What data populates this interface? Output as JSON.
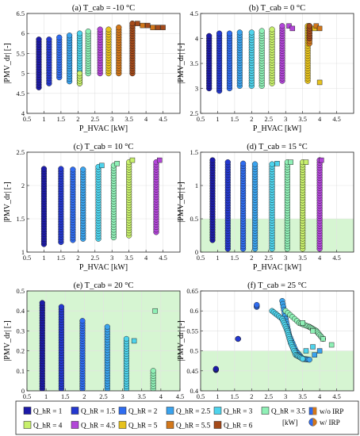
{
  "chart_data": [
    {
      "type": "scatter",
      "panel": "a",
      "title": "(a) T_cab = -10 °C",
      "xlabel": "P_HVAC [kW]",
      "ylabel": "|PMV_dr| [-]",
      "xlim": [
        0.5,
        5
      ],
      "ylim": [
        4,
        6.5
      ],
      "xticks": [
        "0.5",
        "1",
        "1.5",
        "2",
        "2.5",
        "3",
        "3.5",
        "4",
        "4.5"
      ],
      "yticks": [
        "4",
        "4.5",
        "5",
        "5.5",
        "6",
        "6.5"
      ],
      "shaded": null,
      "series": [
        {
          "q": 1,
          "x": 0.85,
          "ymin": 4.65,
          "ymax": 5.85,
          "irp": []
        },
        {
          "q": 1.5,
          "x": 1.15,
          "ymin": 4.75,
          "ymax": 5.85,
          "irp": []
        },
        {
          "q": 2,
          "x": 1.45,
          "ymin": 4.9,
          "ymax": 5.9,
          "irp": []
        },
        {
          "q": 2.5,
          "x": 1.75,
          "ymin": 4.8,
          "ymax": 5.95,
          "irp": []
        },
        {
          "q": 3,
          "x": 2.05,
          "ymin": 4.75,
          "ymax": 6.0,
          "irp": []
        },
        {
          "q": 3.5,
          "x": 2.3,
          "ymin": 5.0,
          "ymax": 6.05,
          "irp": []
        },
        {
          "q": 4,
          "x": 2.05,
          "ymin": 4.75,
          "ymax": 5.0,
          "irp": []
        },
        {
          "q": 4.5,
          "x": 2.65,
          "ymin": 5.0,
          "ymax": 6.1,
          "irp": []
        },
        {
          "q": 5,
          "x": 2.9,
          "ymin": 5.0,
          "ymax": 6.1,
          "irp": []
        },
        {
          "q": 5.5,
          "x": 3.2,
          "ymin": 5.0,
          "ymax": 6.15,
          "irp": [
            [
              3.6,
              6.2
            ],
            [
              3.9,
              6.2
            ],
            [
              4.2,
              6.15
            ]
          ]
        },
        {
          "q": 6,
          "x": 3.6,
          "ymin": 5.0,
          "ymax": 6.25,
          "irp": [
            [
              3.75,
              6.25
            ],
            [
              4.05,
              6.2
            ],
            [
              4.35,
              6.15
            ],
            [
              4.5,
              6.15
            ]
          ]
        }
      ]
    },
    {
      "type": "scatter",
      "panel": "b",
      "title": "(b) T_cab = 0 °C",
      "xlabel": "P_HVAC [kW]",
      "ylabel": "|PMV_dr| [-]",
      "xlim": [
        0.5,
        5
      ],
      "ylim": [
        2.5,
        4.5
      ],
      "xticks": [
        "0.5",
        "1",
        "1.5",
        "2",
        "2.5",
        "3",
        "3.5",
        "4",
        "4.5"
      ],
      "yticks": [
        "2.5",
        "3",
        "3.5",
        "4",
        "4.5"
      ],
      "shaded": null,
      "series": [
        {
          "q": 1,
          "x": 0.75,
          "ymin": 3.0,
          "ymax": 4.05,
          "irp": []
        },
        {
          "q": 1.5,
          "x": 1.05,
          "ymin": 2.95,
          "ymax": 4.1,
          "irp": []
        },
        {
          "q": 2,
          "x": 1.35,
          "ymin": 3.0,
          "ymax": 4.1,
          "irp": []
        },
        {
          "q": 2.5,
          "x": 1.65,
          "ymin": 3.05,
          "ymax": 4.12,
          "irp": []
        },
        {
          "q": 3,
          "x": 2.0,
          "ymin": 3.05,
          "ymax": 4.12,
          "irp": []
        },
        {
          "q": 3.5,
          "x": 2.3,
          "ymin": 3.05,
          "ymax": 4.15,
          "irp": []
        },
        {
          "q": 4,
          "x": 2.6,
          "ymin": 3.1,
          "ymax": 4.18,
          "irp": []
        },
        {
          "q": 4.5,
          "x": 2.9,
          "ymin": 3.15,
          "ymax": 4.25,
          "irp": [
            [
              3.1,
              4.25
            ],
            [
              3.2,
              4.2
            ]
          ]
        },
        {
          "q": 5,
          "x": 3.65,
          "ymin": 3.15,
          "ymax": 4.25,
          "irp": [
            [
              3.85,
              4.2
            ],
            [
              4.0,
              3.12
            ]
          ]
        },
        {
          "q": 5.5,
          "x": 3.7,
          "ymin": 3.9,
          "ymax": 4.25,
          "irp": [
            [
              3.9,
              4.25
            ],
            [
              4.0,
              4.2
            ]
          ]
        },
        {
          "q": 6,
          "x": 3.7,
          "ymin": 4.0,
          "ymax": 4.25,
          "irp": []
        }
      ]
    },
    {
      "type": "scatter",
      "panel": "c",
      "title": "(c) T_cab = 10 °C",
      "xlabel": "P_HVAC [kW]",
      "ylabel": "|PMV_dr| [-]",
      "xlim": [
        0.5,
        5
      ],
      "ylim": [
        1,
        2.5
      ],
      "xticks": [
        "0.5",
        "1",
        "1.5",
        "2",
        "2.5",
        "3",
        "3.5",
        "4",
        "4.5"
      ],
      "yticks": [
        "1",
        "1.5",
        "2",
        "2.5"
      ],
      "shaded": null,
      "series": [
        {
          "q": 1,
          "x": 1.0,
          "ymin": 1.12,
          "ymax": 2.25,
          "irp": []
        },
        {
          "q": 1.5,
          "x": 1.5,
          "ymin": 1.15,
          "ymax": 2.25,
          "irp": []
        },
        {
          "q": 2,
          "x": 1.85,
          "ymin": 1.18,
          "ymax": 2.24,
          "irp": []
        },
        {
          "q": 2.5,
          "x": 2.15,
          "ymin": 1.2,
          "ymax": 2.24,
          "irp": []
        },
        {
          "q": 3,
          "x": 2.6,
          "ymin": 1.2,
          "ymax": 2.28,
          "irp": [
            [
              2.7,
              2.3
            ]
          ]
        },
        {
          "q": 3.5,
          "x": 3.05,
          "ymin": 1.22,
          "ymax": 2.3,
          "irp": [
            [
              3.15,
              2.33
            ]
          ]
        },
        {
          "q": 4,
          "x": 3.5,
          "ymin": 1.25,
          "ymax": 2.35,
          "irp": [
            [
              3.6,
              2.38
            ]
          ]
        },
        {
          "q": 4.5,
          "x": 4.3,
          "ymin": 1.3,
          "ymax": 2.35,
          "irp": [
            [
              4.4,
              2.38
            ]
          ]
        }
      ]
    },
    {
      "type": "scatter",
      "panel": "d",
      "title": "(d) T_cab = 15 °C",
      "xlabel": "P_HVAC [kW]",
      "ylabel": "|PMV_dr| [-]",
      "xlim": [
        0.5,
        5
      ],
      "ylim": [
        0,
        1.5
      ],
      "xticks": [
        "0.5",
        "1",
        "1.5",
        "2",
        "2.5",
        "3",
        "3.5",
        "4",
        "4.5"
      ],
      "yticks": [
        "0",
        "0.5",
        "1",
        "1.5"
      ],
      "shaded": {
        "ymax": 0.5
      },
      "series": [
        {
          "q": 1,
          "x": 0.85,
          "ymin": 0.18,
          "ymax": 1.38,
          "irp": []
        },
        {
          "q": 1.5,
          "x": 1.3,
          "ymin": 0.05,
          "ymax": 1.35,
          "irp": []
        },
        {
          "q": 2,
          "x": 1.75,
          "ymin": 0.05,
          "ymax": 1.33,
          "irp": []
        },
        {
          "q": 2.5,
          "x": 2.1,
          "ymin": 0.05,
          "ymax": 1.32,
          "irp": []
        },
        {
          "q": 3,
          "x": 2.6,
          "ymin": 0.05,
          "ymax": 1.32,
          "irp": [
            [
              2.75,
              1.33
            ]
          ]
        },
        {
          "q": 3.5,
          "x": 3.05,
          "ymin": 0.05,
          "ymax": 1.35,
          "irp": [
            [
              3.15,
              1.35
            ]
          ]
        },
        {
          "q": 4,
          "x": 3.5,
          "ymin": 0.05,
          "ymax": 1.35,
          "irp": [
            [
              3.6,
              1.35
            ]
          ]
        },
        {
          "q": 4.5,
          "x": 4.0,
          "ymin": 0.05,
          "ymax": 1.38,
          "irp": [
            [
              4.05,
              1.38
            ]
          ]
        }
      ]
    },
    {
      "type": "scatter",
      "panel": "e",
      "title": "(e) T_cab = 20 °C",
      "xlabel": "P_HVAC [kW]",
      "ylabel": "|PMV_dr| [-]",
      "xlim": [
        0.5,
        4.5
      ],
      "ylim": [
        0,
        0.5
      ],
      "xticks": [
        "0.5",
        "1",
        "1.5",
        "2",
        "2.5",
        "3",
        "3.5",
        "4",
        "4.5"
      ],
      "yticks": [
        "0",
        "0.1",
        "0.2",
        "0.3",
        "0.4",
        "0.5"
      ],
      "shaded": {
        "ymax": 0.5
      },
      "series": [
        {
          "q": 1,
          "x": 0.9,
          "ymin": 0.01,
          "ymax": 0.44,
          "irp": []
        },
        {
          "q": 1.5,
          "x": 1.4,
          "ymin": 0.01,
          "ymax": 0.42,
          "irp": []
        },
        {
          "q": 2,
          "x": 1.95,
          "ymin": 0.01,
          "ymax": 0.35,
          "irp": []
        },
        {
          "q": 2.5,
          "x": 2.6,
          "ymin": 0.01,
          "ymax": 0.32,
          "irp": []
        },
        {
          "q": 3,
          "x": 3.1,
          "ymin": 0.01,
          "ymax": 0.26,
          "irp": [
            [
              3.3,
              0.25
            ]
          ]
        },
        {
          "q": 3.5,
          "x": 3.8,
          "ymin": 0.01,
          "ymax": 0.1,
          "irp": [
            [
              3.85,
              0.4
            ]
          ]
        }
      ]
    },
    {
      "type": "scatter",
      "panel": "f",
      "title": "(f) T_cab = 25 °C",
      "xlabel": "P_HVAC [kW]",
      "ylabel": "|PMV_dr| [-]",
      "xlim": [
        0.5,
        5
      ],
      "ylim": [
        0.4,
        0.65
      ],
      "xticks": [
        "0.5",
        "1",
        "1.5",
        "2",
        "2.5",
        "3",
        "3.5",
        "4",
        "4.5"
      ],
      "yticks": [
        "0.4",
        "0.45",
        "0.5",
        "0.55",
        "0.6",
        "0.65"
      ],
      "shaded": {
        "ymax": 0.5
      },
      "series": [
        {
          "q": 1,
          "x": 0.95,
          "ymin": 0.452,
          "ymax": 0.455,
          "irp": []
        },
        {
          "q": 1.5,
          "x": 1.6,
          "ymin": 0.53,
          "ymax": 0.53,
          "irp": []
        },
        {
          "q": 2,
          "x": 2.15,
          "ymin": 0.61,
          "ymax": 0.615,
          "irp": []
        }
      ],
      "curves": [
        {
          "q": 2.5,
          "points": [
            [
              2.9,
              0.625
            ],
            [
              3.0,
              0.58
            ],
            [
              3.1,
              0.54
            ],
            [
              3.3,
              0.5
            ],
            [
              3.5,
              0.48
            ],
            [
              3.7,
              0.478
            ]
          ],
          "irp": [
            [
              3.85,
              0.49
            ],
            [
              4.0,
              0.5
            ]
          ]
        },
        {
          "q": 3,
          "points": [
            [
              2.6,
              0.6
            ],
            [
              2.9,
              0.58
            ],
            [
              3.05,
              0.55
            ],
            [
              3.15,
              0.52
            ],
            [
              3.3,
              0.49
            ],
            [
              3.5,
              0.48
            ]
          ],
          "irp": [
            [
              3.6,
              0.5
            ],
            [
              3.8,
              0.51
            ]
          ]
        },
        {
          "q": 3.5,
          "points": [
            [
              3.0,
              0.6
            ],
            [
              3.4,
              0.57
            ],
            [
              3.7,
              0.56
            ],
            [
              3.9,
              0.55
            ],
            [
              4.1,
              0.53
            ]
          ],
          "irp": [
            [
              3.5,
              0.57
            ],
            [
              3.8,
              0.55
            ],
            [
              4.1,
              0.53
            ],
            [
              4.35,
              0.515
            ]
          ]
        }
      ]
    }
  ],
  "legend": {
    "items": [
      {
        "q": 1,
        "label": "Q_hR = 1",
        "color": "#1c1aa8"
      },
      {
        "q": 1.5,
        "label": "Q_hR = 1.5",
        "color": "#2438d0"
      },
      {
        "q": 2,
        "label": "Q_hR = 2",
        "color": "#2f6cf0"
      },
      {
        "q": 2.5,
        "label": "Q_hR = 2.5",
        "color": "#3aa3ee"
      },
      {
        "q": 3,
        "label": "Q_hR = 3",
        "color": "#4ed3ec"
      },
      {
        "q": 3.5,
        "label": "Q_hR = 3.5",
        "color": "#8ff0b6"
      },
      {
        "q": 4,
        "label": "Q_hR = 4",
        "color": "#c8f06c"
      },
      {
        "q": 4.5,
        "label": "Q_hR = 4.5",
        "color": "#b246d8"
      },
      {
        "q": 5,
        "label": "Q_hR = 5",
        "color": "#e6c21e"
      },
      {
        "q": 5.5,
        "label": "Q_hR = 5.5",
        "color": "#d2771a"
      },
      {
        "q": 6,
        "label": "Q_hR = 6",
        "color": "#a44a1a"
      }
    ],
    "unit": "[kW]",
    "wo_irp": "w/o IRP",
    "w_irp": "w/ IRP"
  }
}
